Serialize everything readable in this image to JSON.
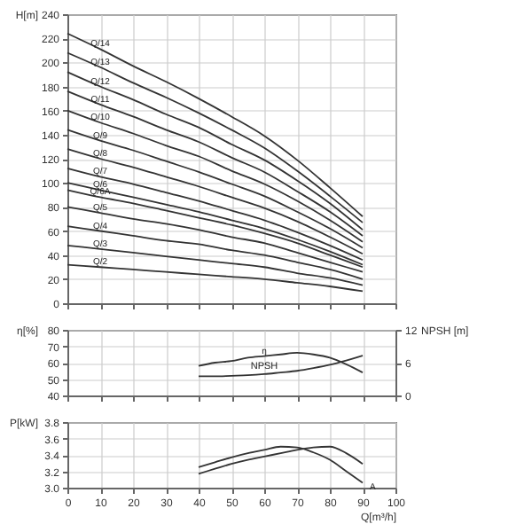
{
  "chart_data": [
    {
      "type": "line",
      "ylabel": "H[m]",
      "x": [
        0,
        10,
        20,
        30,
        40,
        50,
        60,
        70,
        80,
        90
      ],
      "xlim": [
        0,
        100
      ],
      "xticks": [
        0,
        10,
        20,
        30,
        40,
        50,
        60,
        70,
        80,
        90,
        100
      ],
      "ylim": [
        0,
        240
      ],
      "yticks": [
        0,
        20,
        40,
        60,
        80,
        100,
        120,
        140,
        160,
        180,
        200,
        220,
        240
      ],
      "grid": true,
      "tick_labels": "y",
      "series": [
        {
          "name": "Q/14",
          "color": "#333333",
          "values": [
            224,
            211,
            197,
            184,
            170,
            155,
            139,
            119,
            96,
            72
          ]
        },
        {
          "name": "Q/13",
          "color": "#333333",
          "values": [
            208,
            196,
            183,
            171,
            158,
            144,
            129,
            110,
            89,
            67
          ]
        },
        {
          "name": "Q/12",
          "color": "#333333",
          "values": [
            192,
            180,
            169,
            157,
            146,
            132,
            119,
            102,
            83,
            61
          ]
        },
        {
          "name": "Q/11",
          "color": "#333333",
          "values": [
            176,
            165,
            155,
            144,
            134,
            121,
            109,
            93,
            76,
            56
          ]
        },
        {
          "name": "Q/10",
          "color": "#333333",
          "values": [
            160,
            150,
            141,
            131,
            122,
            110,
            99,
            85,
            69,
            51
          ]
        },
        {
          "name": "Q/9",
          "color": "#333333",
          "values": [
            144,
            135,
            127,
            118,
            109,
            99,
            89,
            76,
            62,
            46
          ]
        },
        {
          "name": "Q/8",
          "color": "#333333",
          "values": [
            128,
            120,
            113,
            105,
            97,
            88,
            79,
            68,
            55,
            41
          ]
        },
        {
          "name": "Q/7",
          "color": "#333333",
          "values": [
            112,
            105,
            99,
            92,
            85,
            77,
            69,
            59,
            48,
            36
          ]
        },
        {
          "name": "Q/6",
          "color": "#333333",
          "values": [
            100,
            94,
            88,
            82,
            76,
            69,
            62,
            53,
            43,
            32
          ]
        },
        {
          "name": "Q/6A",
          "color": "#333333",
          "values": [
            94,
            88,
            83,
            77,
            71,
            65,
            58,
            50,
            40,
            30
          ]
        },
        {
          "name": "Q/5",
          "color": "#333333",
          "values": [
            80,
            75,
            70,
            66,
            61,
            55,
            50,
            42,
            34,
            26
          ]
        },
        {
          "name": "Q/4",
          "color": "#333333",
          "values": [
            64,
            60,
            56,
            52,
            49,
            44,
            40,
            34,
            28,
            20
          ]
        },
        {
          "name": "Q/3",
          "color": "#333333",
          "values": [
            48,
            45,
            42,
            39,
            36,
            33,
            30,
            25,
            21,
            15
          ]
        },
        {
          "name": "Q/2",
          "color": "#333333",
          "values": [
            32,
            30,
            28,
            26,
            24,
            22,
            20,
            17,
            14,
            10
          ]
        }
      ]
    },
    {
      "type": "line",
      "ylabel": "η[%]",
      "y2label": "NPSH [m]",
      "x": [
        40,
        45,
        50,
        55,
        60,
        65,
        70,
        75,
        80,
        85,
        90
      ],
      "xlim": [
        0,
        100
      ],
      "xticks": [
        0,
        10,
        20,
        30,
        40,
        50,
        60,
        70,
        80,
        90,
        100
      ],
      "ylim": [
        40,
        80
      ],
      "yticks": [
        40,
        50,
        60,
        70,
        80
      ],
      "y2lim": [
        0,
        12
      ],
      "y2ticks": [
        0,
        6,
        12
      ],
      "grid": true,
      "tick_labels": "y",
      "series": [
        {
          "name": "η",
          "color": "#333333",
          "values": [
            58,
            60,
            61,
            63,
            64,
            65,
            66,
            65,
            63,
            59,
            54
          ]
        },
        {
          "name": "NPSH",
          "color": "#333333",
          "axis": "y2",
          "values": [
            3.5,
            3.5,
            3.6,
            3.7,
            3.9,
            4.2,
            4.5,
            5.0,
            5.6,
            6.4,
            7.3
          ]
        }
      ]
    },
    {
      "type": "line",
      "ylabel": "P[kW]",
      "xlabel": "Q[m³/h]",
      "x": [
        40,
        45,
        50,
        55,
        60,
        65,
        70,
        75,
        80,
        85,
        90
      ],
      "xlim": [
        0,
        100
      ],
      "xticks": [
        0,
        10,
        20,
        30,
        40,
        50,
        60,
        70,
        80,
        90,
        100
      ],
      "ylim": [
        3.0,
        3.8
      ],
      "yticks": [
        {
          "value": 3,
          "label": "3.0"
        },
        3.2,
        3.4,
        3.6,
        3.8
      ],
      "grid": true,
      "series": [
        {
          "name": "A",
          "color": "#333333",
          "values": [
            3.25,
            3.31,
            3.37,
            3.42,
            3.46,
            3.5,
            3.49,
            3.43,
            3.34,
            3.2,
            3.06
          ]
        },
        {
          "color": "#333333",
          "values": [
            3.17,
            3.23,
            3.29,
            3.34,
            3.38,
            3.42,
            3.46,
            3.49,
            3.5,
            3.42,
            3.29
          ]
        }
      ]
    }
  ]
}
